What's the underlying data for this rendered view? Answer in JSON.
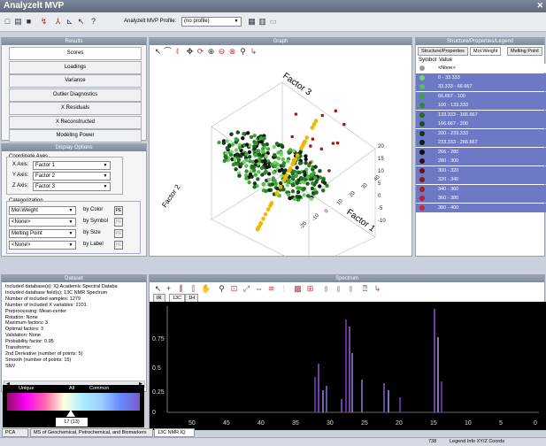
{
  "app": {
    "title": "Analyzelt MVP"
  },
  "toolbar": {
    "profile_label": "Analyzelt MVP Profile:",
    "profile_value": "(no profile)"
  },
  "results": {
    "header": "Results",
    "items": [
      {
        "label": "Scores"
      },
      {
        "label": "Loadings"
      },
      {
        "label": "Variance"
      },
      {
        "label": "Outlier Diagnostics"
      },
      {
        "label": "X Residuals"
      },
      {
        "label": "X Reconstructed"
      },
      {
        "label": "Modeling Power"
      }
    ]
  },
  "display": {
    "header": "Display Options",
    "coord_title": "Coordinate Axes",
    "axes": [
      {
        "label": "X Axis:",
        "value": "Factor 1"
      },
      {
        "label": "Y Axis:",
        "value": "Factor 2"
      },
      {
        "label": "Z Axis:",
        "value": "Factor 3"
      }
    ],
    "cat_title": "Categorization",
    "cats": [
      {
        "value": "Mol.Weight",
        "by": "by Color"
      },
      {
        "value": "<None>",
        "by": "by Symbol"
      },
      {
        "value": "Melting Point",
        "by": "by Size"
      },
      {
        "value": "<None>",
        "by": "by Label"
      }
    ],
    "pe_label": "PE"
  },
  "graph": {
    "header": "Graph",
    "axis_x": "Factor 1",
    "axis_y": "Factor 2",
    "axis_z": "Factor 3",
    "x_ticks": [
      "-20",
      "-10",
      "0",
      "10",
      "20",
      "30",
      "40"
    ],
    "z_ticks": [
      "-10",
      "-5",
      "0",
      "5",
      "10",
      "15",
      "20"
    ]
  },
  "legend": {
    "header": "Structure/Properties/Legend",
    "tabs": [
      "Structure/Properties",
      "Mol.Weight",
      "Melting Point"
    ],
    "col_symbol": "Symbol",
    "col_value": "Value",
    "rows": [
      {
        "value": "<None>",
        "color": "#9a9a9a"
      },
      {
        "value": "0 - 33.333",
        "color": "#7ad26a"
      },
      {
        "value": "33.333 - 66.667",
        "color": "#5cc04f"
      },
      {
        "value": "66.667 - 100",
        "color": "#3fa63b"
      },
      {
        "value": "100 - 133.333",
        "color": "#2b8a2e"
      },
      {
        "value": "133.333 - 166.667",
        "color": "#1f6e24"
      },
      {
        "value": "166.667 - 200",
        "color": "#17521b"
      },
      {
        "value": "200 - 233.333",
        "color": "#0f3812"
      },
      {
        "value": "233.333 - 266.667",
        "color": "#0a1f0b"
      },
      {
        "value": "266 - 280",
        "color": "#101010"
      },
      {
        "value": "280 - 300",
        "color": "#3a0c0c"
      },
      {
        "value": "300 - 320",
        "color": "#6e1010"
      },
      {
        "value": "320 - 340",
        "color": "#901515"
      },
      {
        "value": "340 - 360",
        "color": "#aa1a1a"
      },
      {
        "value": "360 - 380",
        "color": "#c01f1f"
      },
      {
        "value": "380 - 400",
        "color": "#d42424"
      }
    ]
  },
  "info": {
    "header": "Dataset",
    "lines": [
      "Included database(s):  IQ Academic Spectral Databa",
      "Included database field(s):   13C NMR Spectrum",
      "Number of included samples:  1279",
      "Number of included X variables:         2101",
      "Preprocessing:              Mean-center",
      "Rotation:                   None",
      "Maximum factors:            3",
      "Optimal factors:            3",
      "Validation:                 None",
      "Probability factor:         0.95",
      "Transforms:",
      "  2nd Derivative (number of points: 5)",
      "  Smooth (number of points: 15)",
      "  SNV"
    ],
    "scale_left": "Unique",
    "scale_mid": "All",
    "scale_right": "Common",
    "scale_value": "17 (13)"
  },
  "spectrum": {
    "header": "Spectrum",
    "tabs": [
      "IR",
      "13C",
      "1H"
    ],
    "y_ticks": [
      "0.75",
      "0.5",
      "0.25",
      "0"
    ],
    "x_ticks": [
      "50",
      "45",
      "40",
      "35",
      "30",
      "25",
      "20",
      "15",
      "10",
      "5",
      "0"
    ]
  },
  "bottom_tabs": [
    "PCA",
    "MS of Geochemical, Petrochemical, and Biomarkers",
    "13C NMR IQ"
  ],
  "status": {
    "count": "738",
    "legend": "Legend Info  XY/Z Coords"
  },
  "colors": {
    "accent": "#7f8a9b",
    "legend_sel": "#6d79c4",
    "plot_bg": "#000000"
  }
}
